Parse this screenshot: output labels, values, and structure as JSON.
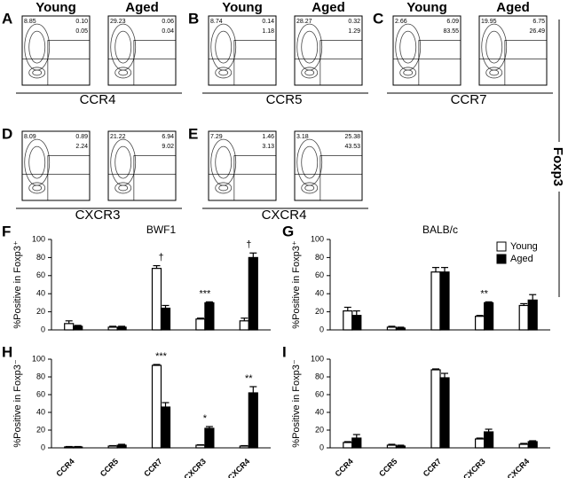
{
  "y_axis_label": "Foxp3",
  "flow_panels": [
    {
      "letter": "A",
      "marker": "CCR4",
      "plots": [
        {
          "group": "Young",
          "upper_left": "8.85",
          "upper_right": "0.10",
          "lower_right": "0.05"
        },
        {
          "group": "Aged",
          "upper_left": "29.23",
          "upper_right": "0.06",
          "lower_right": "0.04"
        }
      ]
    },
    {
      "letter": "B",
      "marker": "CCR5",
      "plots": [
        {
          "group": "Young",
          "upper_left": "8.74",
          "upper_right": "0.14",
          "lower_right": "1.18"
        },
        {
          "group": "Aged",
          "upper_left": "28.27",
          "upper_right": "0.32",
          "lower_right": "1.29"
        }
      ]
    },
    {
      "letter": "C",
      "marker": "CCR7",
      "plots": [
        {
          "group": "Young",
          "upper_left": "2.66",
          "upper_right": "6.09",
          "lower_right": "83.55"
        },
        {
          "group": "Aged",
          "upper_left": "19.95",
          "upper_right": "6.75",
          "lower_right": "26.49"
        }
      ]
    },
    {
      "letter": "D",
      "marker": "CXCR3",
      "plots": [
        {
          "upper_left": "8.09",
          "upper_right": "0.89",
          "lower_right": "2.24"
        },
        {
          "upper_left": "21.22",
          "upper_right": "6.94",
          "lower_right": "9.02"
        }
      ]
    },
    {
      "letter": "E",
      "marker": "CXCR4",
      "plots": [
        {
          "upper_left": "7.29",
          "upper_right": "1.46",
          "lower_right": "3.13"
        },
        {
          "upper_left": "3.18",
          "upper_right": "25.38",
          "lower_right": "43.53"
        }
      ]
    }
  ],
  "chart_data": [
    {
      "type": "bar",
      "letter": "F",
      "title": "BWF1",
      "ylabel": "%Positive in Foxp3⁺",
      "categories": [
        null,
        null,
        null,
        null,
        null
      ],
      "ylim": [
        0,
        100
      ],
      "yticks": [
        0,
        20,
        40,
        60,
        80,
        100
      ],
      "series": [
        {
          "name": "Young",
          "color": "#ffffff",
          "values": [
            7,
            3,
            68,
            12,
            10
          ],
          "errors": [
            3,
            1,
            3,
            1,
            3
          ]
        },
        {
          "name": "Aged",
          "color": "#000000",
          "values": [
            4,
            3,
            24,
            30,
            80
          ],
          "errors": [
            1,
            1,
            3,
            1,
            5
          ]
        }
      ],
      "annotations": [
        {
          "category_index": 2,
          "text": "†"
        },
        {
          "category_index": 3,
          "text": "***"
        },
        {
          "category_index": 4,
          "text": "†"
        }
      ]
    },
    {
      "type": "bar",
      "letter": "G",
      "title": "BALB/c",
      "ylabel": "%Positive in Foxp3⁺",
      "categories": [
        null,
        null,
        null,
        null,
        null
      ],
      "ylim": [
        0,
        100
      ],
      "yticks": [
        0,
        20,
        40,
        60,
        80,
        100
      ],
      "legend": "top-right",
      "series": [
        {
          "name": "Young",
          "color": "#ffffff",
          "values": [
            21,
            3,
            64,
            15,
            27
          ],
          "errors": [
            4,
            1,
            5,
            1,
            2
          ]
        },
        {
          "name": "Aged",
          "color": "#000000",
          "values": [
            16,
            2,
            64,
            30,
            33
          ],
          "errors": [
            5,
            1,
            5,
            1,
            6
          ]
        }
      ],
      "annotations": [
        {
          "category_index": 3,
          "text": "**"
        }
      ]
    },
    {
      "type": "bar",
      "letter": "H",
      "ylabel": "%Positive in Foxp3⁻",
      "categories": [
        "CCR4",
        "CCR5",
        "CCR7",
        "CXCR3",
        "CXCR4"
      ],
      "ylim": [
        0,
        100
      ],
      "yticks": [
        0,
        20,
        40,
        60,
        80,
        100
      ],
      "series": [
        {
          "name": "Young",
          "color": "#ffffff",
          "values": [
            1,
            2,
            93,
            3,
            2
          ],
          "errors": [
            0.5,
            0.5,
            1,
            0.5,
            0.5
          ]
        },
        {
          "name": "Aged",
          "color": "#000000",
          "values": [
            1,
            3,
            46,
            22,
            62
          ],
          "errors": [
            0.5,
            1,
            5,
            2,
            7
          ]
        }
      ],
      "annotations": [
        {
          "category_index": 2,
          "text": "***"
        },
        {
          "category_index": 3,
          "text": "*"
        },
        {
          "category_index": 4,
          "text": "**"
        }
      ]
    },
    {
      "type": "bar",
      "letter": "I",
      "ylabel": "%Positive in Foxp3⁻",
      "categories": [
        "CCR4",
        "CCR5",
        "CCR7",
        "CXCR3",
        "CXCR4"
      ],
      "ylim": [
        0,
        100
      ],
      "yticks": [
        0,
        20,
        40,
        60,
        80,
        100
      ],
      "series": [
        {
          "name": "Young",
          "color": "#ffffff",
          "values": [
            6,
            3,
            88,
            10,
            4
          ],
          "errors": [
            1,
            1,
            1,
            1,
            1
          ]
        },
        {
          "name": "Aged",
          "color": "#000000",
          "values": [
            11,
            2,
            79,
            18,
            7
          ],
          "errors": [
            4,
            1,
            5,
            3,
            1
          ]
        }
      ],
      "annotations": []
    }
  ]
}
